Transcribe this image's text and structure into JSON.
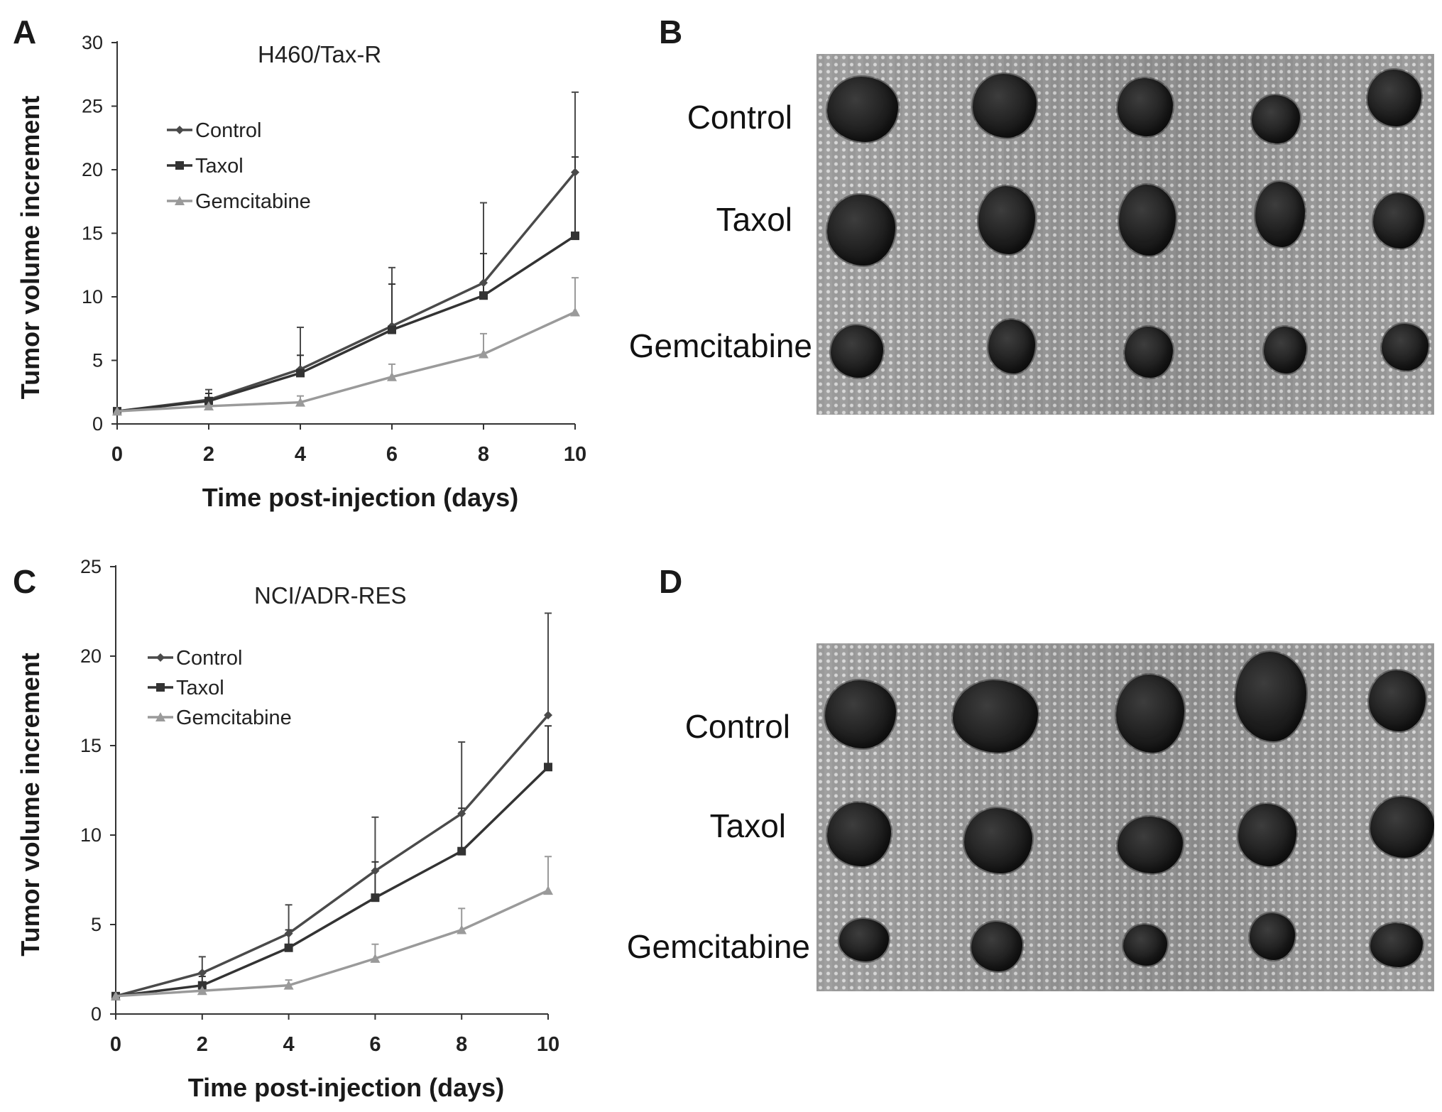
{
  "panels": {
    "a": "A",
    "b": "B",
    "c": "C",
    "d": "D"
  },
  "photo_b": {
    "rows": [
      "Control",
      "Taxol",
      "Gemcitabine"
    ]
  },
  "photo_d": {
    "rows": [
      "Control",
      "Taxol",
      "Gemcitabine"
    ]
  },
  "chart_data": [
    {
      "type": "line",
      "title": "H460/Tax-R",
      "xlabel": "Time post-injection (days)",
      "ylabel": "Tumor volume increment",
      "x": [
        0,
        2,
        4,
        6,
        8,
        10
      ],
      "xticks": [
        "0",
        "2",
        "4",
        "6",
        "8",
        "10"
      ],
      "yticks": [
        "0",
        "5",
        "10",
        "15",
        "20",
        "25",
        "30"
      ],
      "xlim": [
        0,
        10
      ],
      "ylim": [
        0,
        30
      ],
      "legend_position": "upper-left",
      "series": [
        {
          "name": "Control",
          "marker": "diamond",
          "color": "#4a4a4a",
          "values": [
            1.0,
            1.9,
            4.3,
            7.7,
            11.1,
            19.8
          ],
          "errors": [
            0.1,
            0.8,
            3.3,
            4.6,
            6.3,
            6.3
          ]
        },
        {
          "name": "Taxol",
          "marker": "square",
          "color": "#333333",
          "values": [
            1.0,
            1.8,
            4.0,
            7.4,
            10.1,
            14.8
          ],
          "errors": [
            0.1,
            0.6,
            1.4,
            3.6,
            3.3,
            6.2
          ]
        },
        {
          "name": "Gemcitabine",
          "marker": "triangle",
          "color": "#9a9a9a",
          "values": [
            1.0,
            1.4,
            1.7,
            3.7,
            5.5,
            8.8
          ],
          "errors": [
            0.1,
            0.3,
            0.5,
            1.0,
            1.6,
            2.7
          ]
        }
      ]
    },
    {
      "type": "line",
      "title": "NCI/ADR-RES",
      "xlabel": "Time post-injection (days)",
      "ylabel": "Tumor volume increment",
      "x": [
        0,
        2,
        4,
        6,
        8,
        10
      ],
      "xticks": [
        "0",
        "2",
        "4",
        "6",
        "8",
        "10"
      ],
      "yticks": [
        "0",
        "5",
        "10",
        "15",
        "20",
        "25"
      ],
      "xlim": [
        0,
        10
      ],
      "ylim": [
        0,
        25
      ],
      "legend_position": "upper-left",
      "series": [
        {
          "name": "Control",
          "marker": "diamond",
          "color": "#4a4a4a",
          "values": [
            1.0,
            2.3,
            4.5,
            8.0,
            11.2,
            16.7
          ],
          "errors": [
            0.1,
            0.9,
            1.6,
            3.0,
            4.0,
            5.7
          ]
        },
        {
          "name": "Taxol",
          "marker": "square",
          "color": "#333333",
          "values": [
            1.0,
            1.6,
            3.7,
            6.5,
            9.1,
            13.8
          ],
          "errors": [
            0.1,
            0.5,
            1.0,
            2.0,
            2.4,
            2.3
          ]
        },
        {
          "name": "Gemcitabine",
          "marker": "triangle",
          "color": "#9a9a9a",
          "values": [
            1.0,
            1.3,
            1.6,
            3.1,
            4.7,
            6.9
          ],
          "errors": [
            0.1,
            0.2,
            0.3,
            0.8,
            1.2,
            1.9
          ]
        }
      ]
    }
  ]
}
